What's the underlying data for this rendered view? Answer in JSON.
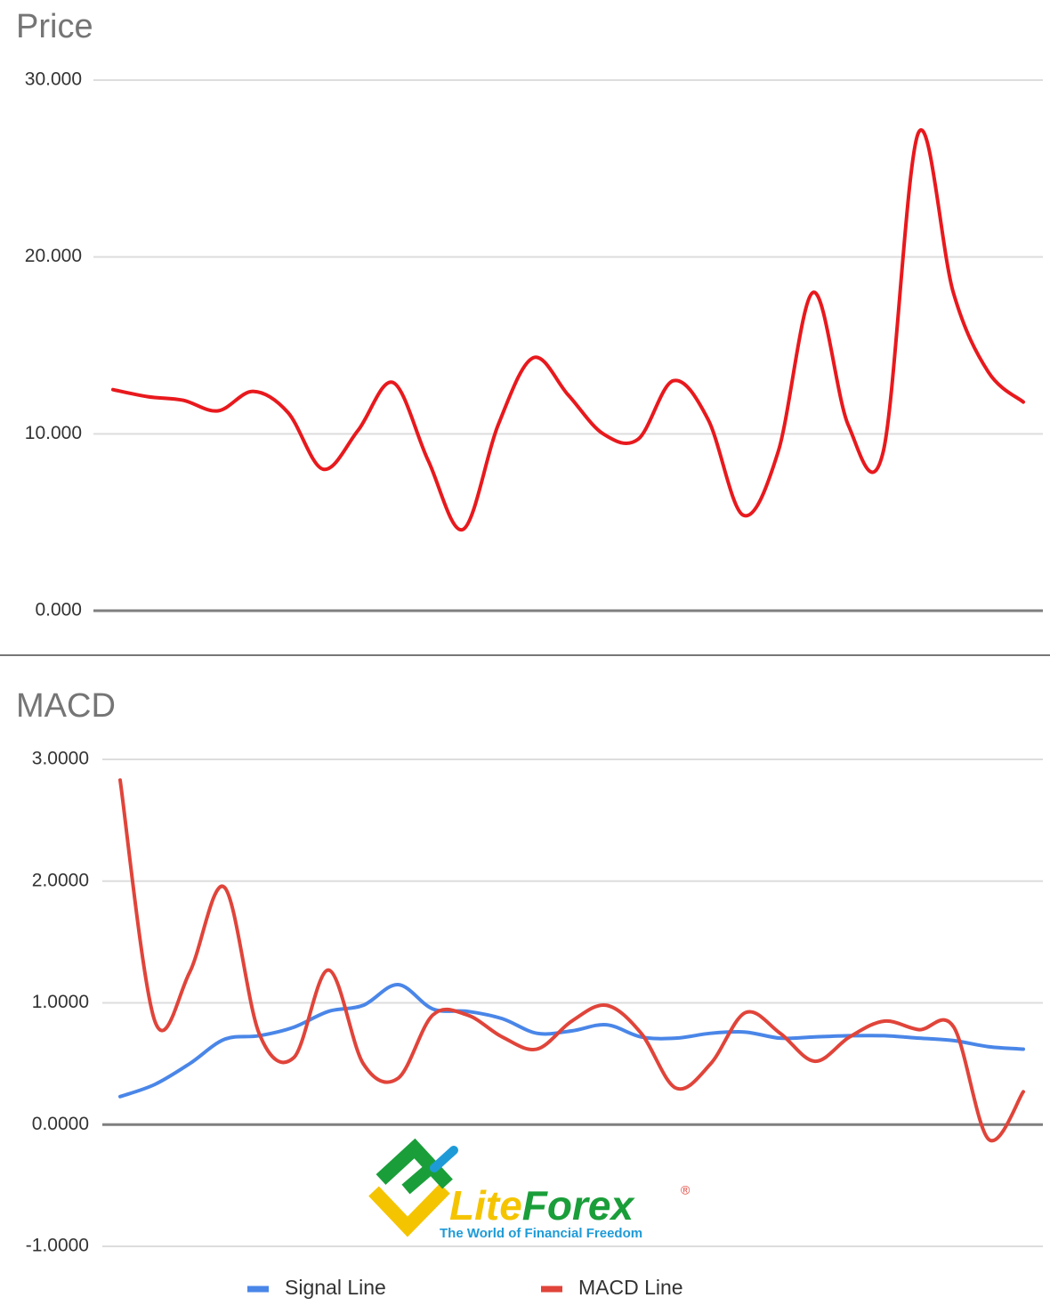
{
  "chart_data": [
    {
      "type": "line",
      "title": "Price",
      "categories": [
        null,
        null,
        null,
        null,
        null,
        null,
        null,
        null,
        null,
        null,
        null,
        null,
        null,
        null,
        null,
        null,
        null,
        null,
        null,
        null,
        null,
        null,
        null,
        null,
        null,
        null,
        null
      ],
      "values": [
        12.5,
        12.1,
        11.9,
        11.3,
        12.4,
        11.2,
        8.0,
        10.2,
        12.9,
        8.5,
        4.6,
        10.5,
        14.3,
        12.2,
        10.0,
        9.7,
        13.0,
        10.8,
        5.4,
        9.0,
        18.0,
        10.5,
        9.0,
        27.0,
        18.0,
        13.5,
        11.8
      ],
      "color": "#e8191d",
      "ylim": [
        0,
        30
      ],
      "yticks": [
        {
          "value": 0,
          "label": "0.000"
        },
        {
          "value": 10,
          "label": "10.000"
        },
        {
          "value": 20,
          "label": "20.000"
        },
        {
          "value": 30,
          "label": "30.000"
        }
      ],
      "grid": true
    },
    {
      "type": "line",
      "title": "MACD",
      "categories": [
        null,
        null,
        null,
        null,
        null,
        null,
        null,
        null,
        null,
        null,
        null,
        null,
        null,
        null,
        null,
        null,
        null,
        null,
        null,
        null,
        null,
        null,
        null,
        null,
        null,
        null,
        null
      ],
      "series": [
        {
          "name": "Signal Line",
          "color": "#4a86e8",
          "values": [
            0.23,
            0.33,
            0.5,
            0.7,
            0.73,
            0.8,
            0.93,
            0.98,
            1.15,
            0.95,
            0.93,
            0.87,
            0.75,
            0.77,
            0.82,
            0.72,
            0.71,
            0.75,
            0.76,
            0.71,
            0.72,
            0.73,
            0.73,
            0.71,
            0.69,
            0.64,
            0.62
          ]
        },
        {
          "name": "MACD Line",
          "color": "#e0443a",
          "values": [
            2.83,
            0.85,
            1.25,
            1.95,
            0.75,
            0.55,
            1.27,
            0.5,
            0.38,
            0.9,
            0.9,
            0.72,
            0.62,
            0.85,
            0.98,
            0.75,
            0.3,
            0.5,
            0.92,
            0.75,
            0.52,
            0.72,
            0.85,
            0.78,
            0.8,
            -0.12,
            0.27
          ]
        }
      ],
      "ylim": [
        -1,
        3
      ],
      "yticks": [
        {
          "value": -1,
          "label": "-1.0000"
        },
        {
          "value": 0,
          "label": "0.0000"
        },
        {
          "value": 1,
          "label": "1.0000"
        },
        {
          "value": 2,
          "label": "2.0000"
        },
        {
          "value": 3,
          "label": "3.0000"
        }
      ],
      "grid": true,
      "legend": "bottom"
    }
  ],
  "watermark": {
    "brand_1": "Lite",
    "brand_2": "Forex",
    "mark": "®",
    "tagline": "The World of Financial Freedom"
  }
}
